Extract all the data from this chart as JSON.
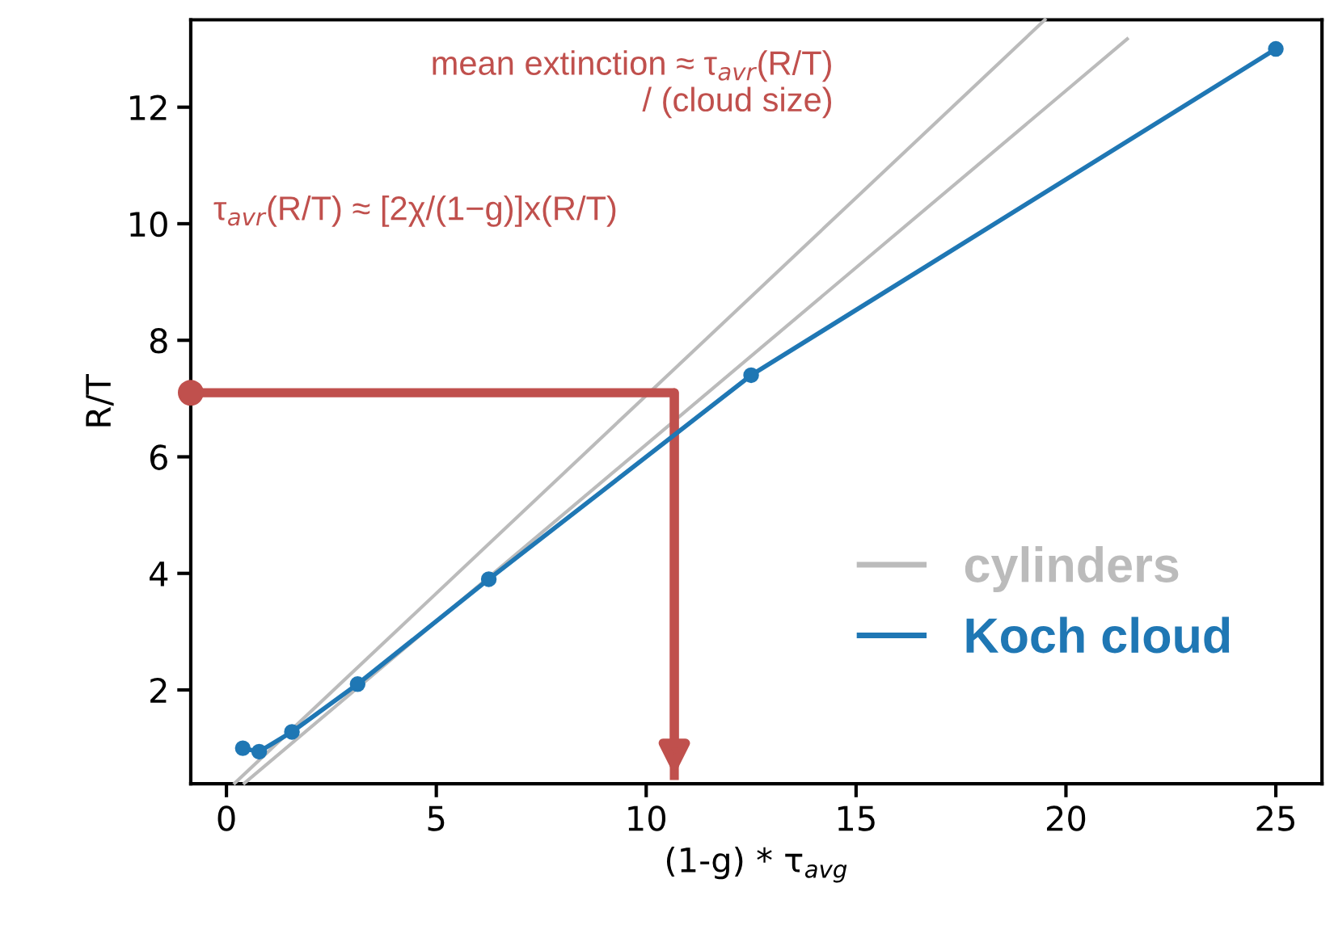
{
  "chart_data": {
    "type": "line",
    "xlabel": "(1-g) * τ$_{avg}$",
    "ylabel": "R/T",
    "series": [
      {
        "name": "cylinders",
        "color": "#bbbbbb",
        "x": [
          0.2,
          19.5
        ],
        "values": [
          0.4,
          13.5
        ],
        "marker": "none"
      },
      {
        "color": "#bbbbbb",
        "x": [
          0.43,
          21.46
        ],
        "values": [
          0.4,
          13.17
        ],
        "marker": "none"
      },
      {
        "color": "#c0504d",
        "x": [
          -0.85,
          10.67,
          10.67
        ],
        "values": [
          7.1,
          7.1,
          0.53
        ],
        "marker": "none"
      },
      {
        "type": "scatter",
        "color": "#c0504d",
        "x": [
          -0.85
        ],
        "values": [
          7.1
        ]
      },
      {
        "name": "Koch cloud",
        "color": "#1f77b4",
        "x": [
          0.39,
          0.78,
          1.56,
          3.125,
          6.25,
          12.5,
          25
        ],
        "values": [
          1.0,
          0.94,
          1.28,
          2.1,
          3.9,
          7.4,
          13.0
        ],
        "marker": "circle"
      }
    ],
    "annotations": [
      "mean extinction ≈ τ$_{avr}$(R/T)\n/ (cloud size)",
      "τ$_{avr}$(R/T) ≈ [2χ/(1−g)]x(R/T)"
    ],
    "xlim": [
      -0.85,
      26.1
    ],
    "ylim": [
      0.39,
      13.5
    ],
    "xticks": [
      0,
      5,
      10,
      15,
      20,
      25
    ],
    "yticks": [
      2,
      4,
      6,
      8,
      10,
      12
    ],
    "legend": "lower right",
    "grid": false
  }
}
